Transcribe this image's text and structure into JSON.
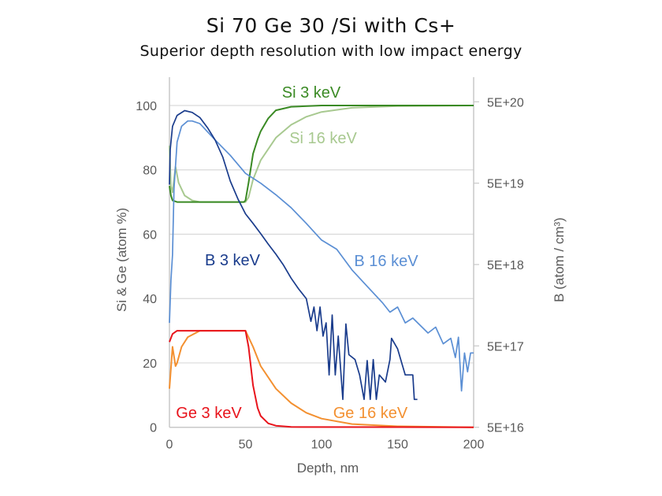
{
  "title": "Si 70 Ge 30 /Si with Cs+",
  "subtitle": "Superior depth resolution with low impact energy",
  "chart_data": {
    "type": "line",
    "xlabel": "Depth, nm",
    "ylabel": "Si & Ge (atom %)",
    "y2label": "B (atom / cm³)",
    "xlim": [
      0,
      200
    ],
    "ylim": [
      0,
      100
    ],
    "y2lim": [
      5e+16,
      5e+20
    ],
    "y2scale": "log",
    "grid": true,
    "xticks": [
      "0",
      "50",
      "100",
      "150",
      "200"
    ],
    "yticks": [
      "0",
      "20",
      "40",
      "60",
      "80",
      "100"
    ],
    "y2ticks": [
      "5E+16",
      "5E+17",
      "5E+18",
      "5E+19",
      "5E+20"
    ],
    "series": [
      {
        "name": "Si 3 keV",
        "axis": "left",
        "color": "#3a8a24",
        "x": [
          0,
          1,
          2,
          5,
          20,
          49,
          50,
          52,
          55,
          58,
          60,
          65,
          70,
          80,
          100,
          200
        ],
        "y": [
          75,
          72,
          70.5,
          70,
          70,
          70,
          70.5,
          76,
          85,
          89.5,
          92,
          96,
          98.5,
          99.6,
          100,
          100
        ]
      },
      {
        "name": "Si 16 keV",
        "axis": "left",
        "color": "#a8c990",
        "x": [
          0,
          1,
          2,
          4,
          6,
          10,
          15,
          20,
          50,
          52,
          55,
          60,
          70,
          80,
          90,
          100,
          120,
          150,
          200
        ],
        "y": [
          87.5,
          75,
          73,
          81,
          76,
          72,
          70.5,
          70,
          70,
          71.5,
          77,
          83,
          90,
          94,
          96.5,
          98,
          99.3,
          99.8,
          100
        ]
      },
      {
        "name": "Ge 3 keV",
        "axis": "left",
        "color": "#e8141c",
        "x": [
          0,
          2,
          5,
          50,
          52,
          55,
          58,
          60,
          65,
          70,
          80,
          200
        ],
        "y": [
          26.5,
          29,
          30,
          30,
          25,
          13,
          6,
          3.5,
          1.2,
          0.5,
          0.1,
          0
        ]
      },
      {
        "name": "Ge 16 keV",
        "axis": "left",
        "color": "#f39030",
        "x": [
          0,
          2,
          4,
          5,
          8,
          12,
          20,
          50,
          55,
          60,
          70,
          80,
          90,
          100,
          120,
          150,
          200
        ],
        "y": [
          12,
          25,
          19,
          20,
          25,
          28,
          30,
          30,
          25,
          19,
          12,
          7.5,
          4.5,
          2.7,
          1,
          0.3,
          0
        ]
      },
      {
        "name": "B 3 keV",
        "axis": "right",
        "color": "#1a3c8c",
        "x": [
          0,
          0.5,
          2,
          5,
          10,
          15,
          20,
          25,
          30,
          35,
          40,
          45,
          50,
          55,
          60,
          65,
          70,
          75,
          80,
          85,
          90,
          93,
          95,
          97,
          99,
          101,
          103,
          105,
          107,
          109,
          111,
          114,
          116,
          118,
          122,
          125,
          128,
          130,
          132,
          134,
          136,
          138,
          142,
          145,
          146,
          150,
          155,
          160,
          161,
          163
        ],
        "y": [
          4.8e+19,
          1.3e+20,
          2.5e+20,
          3.4e+20,
          3.9e+20,
          3.7e+20,
          3.2e+20,
          2.4e+20,
          1.7e+20,
          1.05e+20,
          5.3e+19,
          3.2e+19,
          2.1e+19,
          1.6e+19,
          1.2e+19,
          8.9e+18,
          6.7e+18,
          4.9e+18,
          3.4e+18,
          2.5e+18,
          1.9e+18,
          1e+18,
          1.5e+18,
          7.7e+17,
          1.5e+18,
          6.6e+17,
          9.6e+17,
          2.2e+17,
          1.2e+18,
          2.2e+17,
          6.6e+17,
          1.1e+17,
          9.3e+17,
          3.9e+17,
          3.4e+17,
          2.2e+17,
          1.1e+17,
          3.3e+17,
          1.1e+17,
          3.4e+17,
          1.1e+17,
          2.2e+17,
          1.8e+17,
          3.4e+17,
          6.2e+17,
          4.6e+17,
          2.2e+17,
          2.2e+17,
          1.1e+17,
          1.1e+17
        ]
      },
      {
        "name": "B 16 keV",
        "axis": "right",
        "color": "#5b8fd4",
        "x": [
          0,
          1,
          2,
          3,
          5,
          8,
          12,
          15,
          20,
          30,
          40,
          50,
          60,
          70,
          80,
          90,
          100,
          110,
          120,
          130,
          140,
          145,
          150,
          155,
          160,
          170,
          175,
          180,
          185,
          188,
          190,
          192,
          194,
          196,
          198,
          200
        ],
        "y": [
          9.6e+17,
          3.2e+18,
          6.6e+18,
          4.3e+19,
          1.6e+20,
          2.5e+20,
          2.9e+20,
          2.9e+20,
          2.7e+20,
          1.7e+20,
          1.1e+20,
          6.6e+19,
          5e+19,
          3.6e+19,
          2.5e+19,
          1.6e+19,
          1e+19,
          7.7e+18,
          4.3e+18,
          2.7e+18,
          1.7e+18,
          1.3e+18,
          1.5e+18,
          9.6e+17,
          1.1e+18,
          7.2e+17,
          8.5e+17,
          5.3e+17,
          6.2e+17,
          3.6e+17,
          6.4e+17,
          1.4e+17,
          4.1e+17,
          2.4e+17,
          4.1e+17,
          4.1e+17
        ]
      }
    ]
  }
}
